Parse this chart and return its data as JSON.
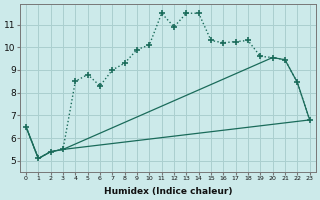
{
  "xlabel": "Humidex (Indice chaleur)",
  "bg_color": "#cceaea",
  "grid_color": "#aacfcf",
  "line_color": "#1a6b5a",
  "xlim": [
    -0.5,
    23.5
  ],
  "ylim": [
    4.5,
    11.9
  ],
  "yticks": [
    5,
    6,
    7,
    8,
    9,
    10,
    11
  ],
  "xticks": [
    0,
    1,
    2,
    3,
    4,
    5,
    6,
    7,
    8,
    9,
    10,
    11,
    12,
    13,
    14,
    15,
    16,
    17,
    18,
    19,
    20,
    21,
    22,
    23
  ],
  "series1_x": [
    0,
    1,
    2,
    3,
    4,
    5,
    6,
    7,
    8,
    9,
    10,
    11,
    12,
    13,
    14,
    15,
    16,
    17,
    18,
    19,
    20,
    21,
    22,
    23
  ],
  "series1_y": [
    6.5,
    5.1,
    5.4,
    5.5,
    8.5,
    8.8,
    8.3,
    9.0,
    9.3,
    9.9,
    10.1,
    11.5,
    10.9,
    11.5,
    11.5,
    10.3,
    10.2,
    10.25,
    10.3,
    9.6,
    9.55,
    9.45,
    8.45,
    6.8
  ],
  "series2_x": [
    0,
    1,
    2,
    3,
    23
  ],
  "series2_y": [
    6.5,
    5.1,
    5.4,
    5.5,
    6.8
  ],
  "series3_x": [
    0,
    1,
    2,
    3,
    20,
    21,
    22,
    23
  ],
  "series3_y": [
    6.5,
    5.1,
    5.4,
    5.5,
    9.55,
    9.45,
    8.45,
    6.8
  ]
}
